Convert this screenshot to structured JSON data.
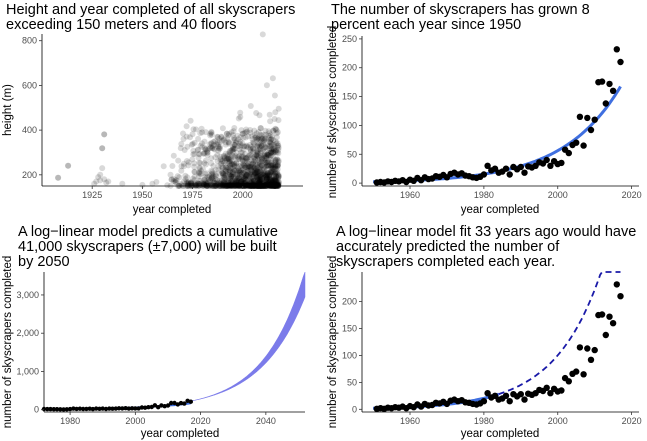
{
  "chart_data": [
    {
      "type": "scatter",
      "id": "p1",
      "title": [
        "Height and year completed of all skyscrapers",
        "exceeding 150 meters and 40 floors"
      ],
      "xlabel": "year completed",
      "ylabel": "height (m)",
      "xlim": [
        1900,
        2030
      ],
      "ylim": [
        150,
        830
      ],
      "xticks": [
        1925,
        1950,
        1975,
        2000
      ],
      "xtick_labels": [
        "1925",
        "1950",
        "1975",
        "2000"
      ],
      "yticks": [
        200,
        400,
        600,
        800
      ],
      "ytick_labels": [
        "200",
        "400",
        "600",
        "800"
      ],
      "point_color": "#000000",
      "point_alpha": 0.15,
      "notable_points": [
        {
          "x": 1908,
          "y": 187
        },
        {
          "x": 1913,
          "y": 241
        },
        {
          "x": 1930,
          "y": 319
        },
        {
          "x": 1931,
          "y": 381
        },
        {
          "x": 1964,
          "y": 200
        },
        {
          "x": 1972,
          "y": 417
        },
        {
          "x": 1974,
          "y": 442
        },
        {
          "x": 1998,
          "y": 452
        },
        {
          "x": 2004,
          "y": 508
        },
        {
          "x": 2010,
          "y": 828
        },
        {
          "x": 2012,
          "y": 601
        },
        {
          "x": 2015,
          "y": 632
        },
        {
          "x": 2016,
          "y": 555
        }
      ]
    },
    {
      "type": "scatter",
      "id": "p2",
      "title": [
        "The number of skyscrapers has grown 8",
        "percent each year since 1950"
      ],
      "xlabel": "year completed",
      "ylabel": "number of skyscrapers completed",
      "xlim": [
        1947,
        2022
      ],
      "ylim": [
        -5,
        255
      ],
      "xticks": [
        1960,
        1980,
        2000,
        2020
      ],
      "xtick_labels": [
        "1960",
        "1980",
        "2000",
        "2020"
      ],
      "yticks": [
        0,
        50,
        100,
        150,
        200,
        250
      ],
      "ytick_labels": [
        "0",
        "50",
        "100",
        "150",
        "200",
        "250"
      ],
      "fit_color": "#3f6fe0",
      "years": [
        1951,
        1952,
        1953,
        1954,
        1955,
        1956,
        1957,
        1958,
        1959,
        1960,
        1961,
        1962,
        1963,
        1964,
        1965,
        1966,
        1967,
        1968,
        1969,
        1970,
        1971,
        1972,
        1973,
        1974,
        1975,
        1976,
        1977,
        1978,
        1979,
        1980,
        1981,
        1982,
        1983,
        1984,
        1985,
        1986,
        1987,
        1988,
        1989,
        1990,
        1991,
        1992,
        1993,
        1994,
        1995,
        1996,
        1997,
        1998,
        1999,
        2000,
        2001,
        2002,
        2003,
        2004,
        2005,
        2006,
        2007,
        2008,
        2009,
        2010,
        2011,
        2012,
        2013,
        2014,
        2015,
        2016,
        2017
      ],
      "counts": [
        1,
        2,
        1,
        3,
        2,
        4,
        3,
        5,
        2,
        6,
        4,
        9,
        5,
        10,
        7,
        8,
        12,
        11,
        14,
        10,
        16,
        18,
        15,
        17,
        13,
        12,
        10,
        9,
        11,
        15,
        30,
        22,
        25,
        18,
        20,
        25,
        15,
        28,
        24,
        28,
        18,
        29,
        27,
        30,
        36,
        34,
        40,
        30,
        38,
        33,
        35,
        58,
        52,
        66,
        70,
        115,
        65,
        113,
        92,
        110,
        175,
        176,
        138,
        172,
        160,
        232,
        210
      ]
    },
    {
      "type": "area",
      "id": "p3",
      "title": [
        "A log−linear model predicts a cumulative",
        "41,000 skyscrapers (±7,000) will be built",
        "by 2050"
      ],
      "xlabel": "year completed",
      "ylabel": "number of skyscrapers completed",
      "xlim": [
        1972,
        2052
      ],
      "ylim": [
        -60,
        3600
      ],
      "xticks": [
        1980,
        2000,
        2020,
        2040
      ],
      "xtick_labels": [
        "1980",
        "2000",
        "2020",
        "2040"
      ],
      "yticks": [
        0,
        1000,
        2000,
        3000
      ],
      "ytick_labels": [
        "0",
        "1,000",
        "2,000",
        "3,000"
      ],
      "band_color": "#7b7bea",
      "band_start_year": 2017,
      "band_end_year": 2052,
      "band_growth_low": 0.0735,
      "band_growth_high": 0.0795,
      "band_base_value": 225
    },
    {
      "type": "scatter",
      "id": "p4",
      "title": [
        "A log−linear model fit 33 years ago would have",
        "accurately predicted the number of",
        "skyscrapers completed each year."
      ],
      "xlabel": "year completed",
      "ylabel": "number of skyscrapers completed",
      "xlim": [
        1947,
        2022
      ],
      "ylim": [
        -5,
        255
      ],
      "xticks": [
        1960,
        1980,
        2000,
        2020
      ],
      "xtick_labels": [
        "1960",
        "1980",
        "2000",
        "2020"
      ],
      "yticks": [
        0,
        50,
        100,
        150,
        200
      ],
      "ytick_labels": [
        "0",
        "50",
        "100",
        "150",
        "200"
      ],
      "fit_cutoff_year": 1984,
      "fit_color": "#3f6fe0",
      "projection_color": "#1a1aa8"
    }
  ]
}
